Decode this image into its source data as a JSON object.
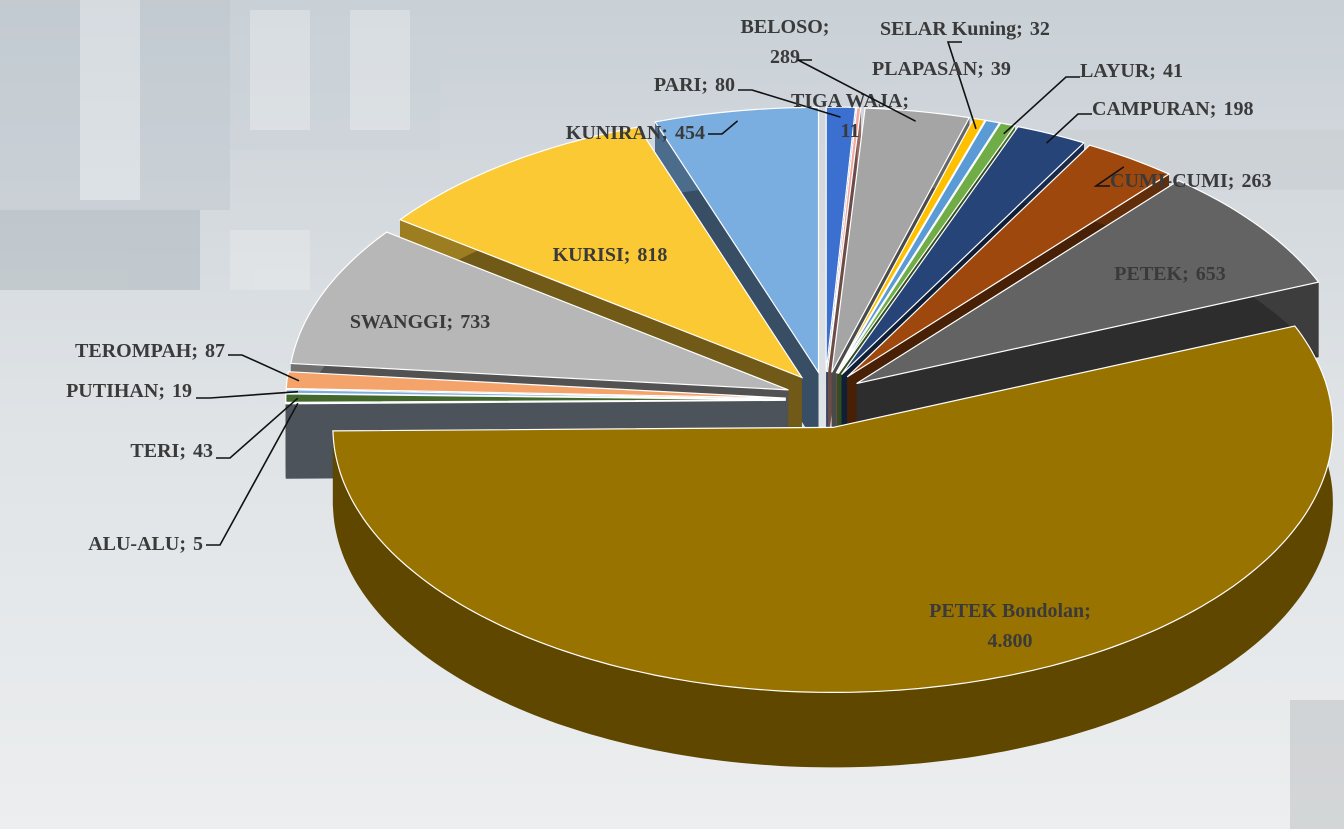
{
  "chart_data": {
    "type": "pie3d",
    "separator": ";",
    "categories": [
      "PARI",
      "TIGA WAJA",
      "BELOSO",
      "SELAR Kuning",
      "PLAPASAN",
      "LAYUR",
      "CAMPURAN",
      "CUMI-CUMI",
      "PETEK",
      "PETEK Bondolan",
      "ALU-ALU",
      "TERI",
      "PUTIHAN",
      "TEROMPAH",
      "SWANGGI",
      "KURISI",
      "KUNIRAN"
    ],
    "values": [
      80,
      11,
      289,
      32,
      39,
      41,
      198,
      263,
      653,
      4800,
      5,
      43,
      19,
      87,
      733,
      818,
      454
    ],
    "value_labels": [
      "80",
      "11",
      "289",
      "32",
      "39",
      "41",
      "198",
      "263",
      "653",
      "4.800",
      "5",
      "43",
      "19",
      "87",
      "733",
      "818",
      "454"
    ],
    "colors": [
      "#3b6fd0",
      "#f2a9a0",
      "#a5a5a5",
      "#ffc000",
      "#5b9bd5",
      "#70ad47",
      "#264478",
      "#9e480e",
      "#636363",
      "#997300",
      "#a9b8c8",
      "#43682b",
      "#7cafdd",
      "#f4a36b",
      "#b7b7b7",
      "#fbc934",
      "#7aaee0"
    ]
  }
}
